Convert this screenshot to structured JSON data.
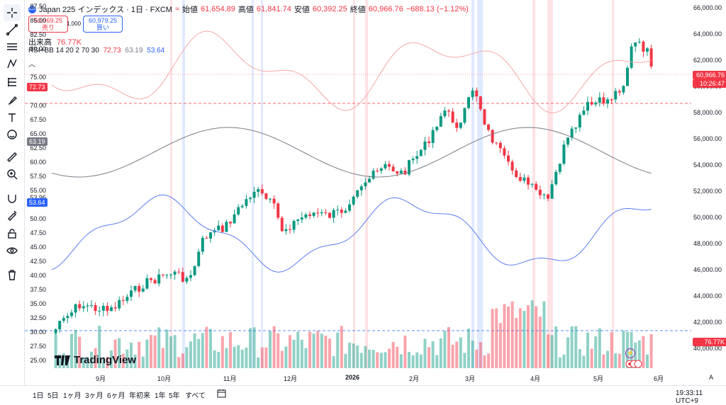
{
  "symbol": {
    "badge": "225",
    "title": "Japan 225 インデックス · 1日 · FXCM",
    "connector": "≈"
  },
  "ohlc": {
    "open_k": "始値",
    "open_v": "61,654.89",
    "high_k": "高値",
    "high_v": "61,841.74",
    "low_k": "安値",
    "low_v": "60,392.25",
    "close_k": "終値",
    "close_v": "60,966.76",
    "change": "−688.13 (−1.12%)"
  },
  "trade": {
    "sell_price": "60,969.25",
    "sell_label": "売り",
    "spread": "1,000",
    "buy_price": "60,979.25",
    "buy_label": "買い"
  },
  "volume": {
    "label": "出来高",
    "value": "76.77K"
  },
  "rsi": {
    "label": "RSI+BB 14 20 2 70 30",
    "v1": "72.73",
    "v2": "63.19",
    "v3": "53.64"
  },
  "left_axis": [
    "87.50",
    "85.00",
    "82.50",
    "80.00",
    "77.50",
    "75.00",
    "72.50",
    "70.00",
    "67.50",
    "65.00",
    "62.50",
    "60.00",
    "57.50",
    "55.00",
    "53.96",
    "50.00",
    "47.50",
    "45.00",
    "42.50",
    "40.00",
    "37.50",
    "35.00",
    "32.50",
    "30.00",
    "27.50",
    "25.00"
  ],
  "left_badges": {
    "rsi": "72.73",
    "mid": "63.19",
    "low": "53.64"
  },
  "right_axis": [
    "66,000.00",
    "64,000.00",
    "62,000.00",
    "60,000.00",
    "58,000.00",
    "56,000.00",
    "54,000.00",
    "52,000.00",
    "50,000.00",
    "48,000.00",
    "46,000.00",
    "44,000.00",
    "42,000.00",
    "40,000.00"
  ],
  "right_badges": {
    "price": "60,966.76",
    "countdown": "10:26:47",
    "volume": "76.77K"
  },
  "x_axis": [
    "9月",
    "10月",
    "11月",
    "12月",
    "2026",
    "2月",
    "3月",
    "4月",
    "5月",
    "6月"
  ],
  "ranges": [
    "1日",
    "5日",
    "1ヶ月",
    "3ヶ月",
    "6ヶ月",
    "年初来",
    "1年",
    "5年",
    "すべて"
  ],
  "clock": "19:33:11 UTC+9",
  "logo": "TradingView",
  "colors": {
    "up": "#089981",
    "down": "#f23645",
    "blue": "#2962ff",
    "rsi": "#f7a8a8",
    "bbmid": "#787b86",
    "bblow": "#5b7cf0"
  }
}
